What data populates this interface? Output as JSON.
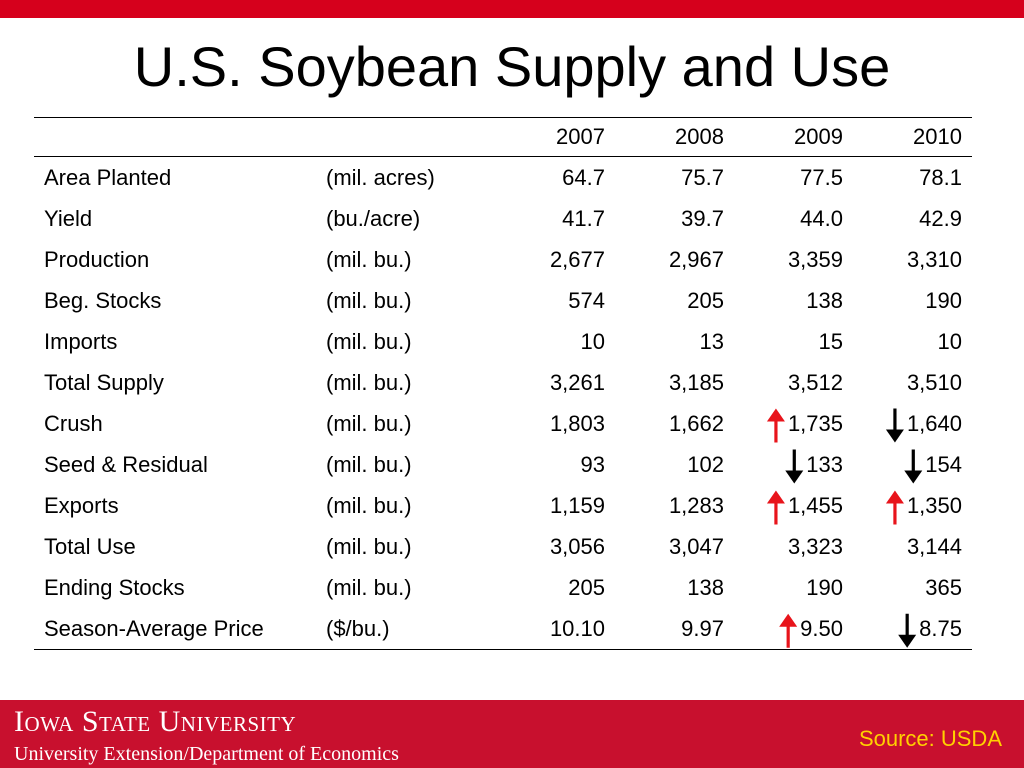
{
  "title": "U.S. Soybean Supply and Use",
  "table": {
    "years": [
      "2007",
      "2008",
      "2009",
      "2010"
    ],
    "rows": [
      {
        "label": "Area Planted",
        "unit": "(mil. acres)",
        "values": [
          "64.7",
          "75.7",
          "77.5",
          "78.1"
        ]
      },
      {
        "label": "Yield",
        "unit": "(bu./acre)",
        "values": [
          "41.7",
          "39.7",
          "44.0",
          "42.9"
        ]
      },
      {
        "label": "Production",
        "unit": "(mil. bu.)",
        "values": [
          "2,677",
          "2,967",
          "3,359",
          "3,310"
        ]
      },
      {
        "label": "Beg. Stocks",
        "unit": "(mil. bu.)",
        "values": [
          "574",
          "205",
          "138",
          "190"
        ]
      },
      {
        "label": "Imports",
        "unit": "(mil. bu.)",
        "values": [
          "10",
          "13",
          "15",
          "10"
        ]
      },
      {
        "label": "Total Supply",
        "unit": "(mil. bu.)",
        "values": [
          "3,261",
          "3,185",
          "3,512",
          "3,510"
        ]
      },
      {
        "label": "Crush",
        "unit": "(mil. bu.)",
        "values": [
          "1,803",
          "1,662",
          "1,735",
          "1,640"
        ]
      },
      {
        "label": "Seed & Residual",
        "unit": "(mil. bu.)",
        "values": [
          "93",
          "102",
          "133",
          "154"
        ]
      },
      {
        "label": "Exports",
        "unit": "(mil. bu.)",
        "values": [
          "1,159",
          "1,283",
          "1,455",
          "1,350"
        ]
      },
      {
        "label": "Total Use",
        "unit": "(mil. bu.)",
        "values": [
          "3,056",
          "3,047",
          "3,323",
          "3,144"
        ]
      },
      {
        "label": "Ending Stocks",
        "unit": "(mil. bu.)",
        "values": [
          "205",
          "138",
          "190",
          "365"
        ]
      },
      {
        "label": "Season-Average Price",
        "unit": "($/bu.)",
        "values": [
          "10.10",
          "9.97",
          "9.50",
          "8.75"
        ]
      }
    ]
  },
  "arrows": [
    {
      "row": "Crush",
      "year": "2009",
      "direction": "up",
      "color": "#e8141b"
    },
    {
      "row": "Crush",
      "year": "2010",
      "direction": "down",
      "color": "#000000"
    },
    {
      "row": "Seed & Residual",
      "year": "2009",
      "direction": "down",
      "color": "#000000"
    },
    {
      "row": "Seed & Residual",
      "year": "2010",
      "direction": "down",
      "color": "#000000"
    },
    {
      "row": "Exports",
      "year": "2009",
      "direction": "up",
      "color": "#e8141b"
    },
    {
      "row": "Exports",
      "year": "2010",
      "direction": "up",
      "color": "#e8141b"
    },
    {
      "row": "Season-Average Price",
      "year": "2009",
      "direction": "up",
      "color": "#e8141b"
    },
    {
      "row": "Season-Average Price",
      "year": "2010",
      "direction": "down",
      "color": "#000000"
    }
  ],
  "footer": {
    "university": "Iowa State University",
    "department": "University Extension/Department of Economics",
    "source": "Source: USDA"
  },
  "colors": {
    "brand_red": "#c8102e",
    "top_bar": "#d6001c",
    "source_text": "#ffd100"
  }
}
